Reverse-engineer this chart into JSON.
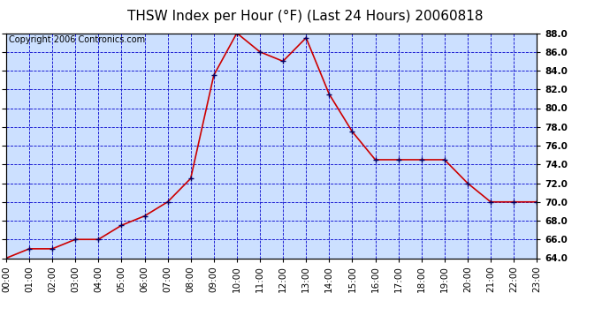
{
  "title": "THSW Index per Hour (°F) (Last 24 Hours) 20060818",
  "copyright": "Copyright 2006 Contronics.com",
  "hours": [
    0,
    1,
    2,
    3,
    4,
    5,
    6,
    7,
    8,
    9,
    10,
    11,
    12,
    13,
    14,
    15,
    16,
    17,
    18,
    19,
    20,
    21,
    22,
    23
  ],
  "values": [
    64.0,
    65.0,
    65.0,
    66.0,
    66.0,
    67.5,
    68.5,
    70.0,
    72.5,
    83.5,
    88.0,
    86.0,
    85.0,
    87.5,
    81.5,
    77.5,
    74.5,
    74.5,
    74.5,
    74.5,
    72.0,
    70.0,
    70.0,
    70.0
  ],
  "line_color": "#cc0000",
  "marker_color": "#000066",
  "fig_bg_color": "#ffffff",
  "plot_bg_color": "#cce0ff",
  "grid_color": "#0000cc",
  "border_color": "#000000",
  "title_color": "#000000",
  "copyright_color": "#000000",
  "ylim_min": 64.0,
  "ylim_max": 88.0,
  "ytick_step": 2.0,
  "title_fontsize": 11,
  "tick_fontsize": 7.5,
  "copyright_fontsize": 7
}
